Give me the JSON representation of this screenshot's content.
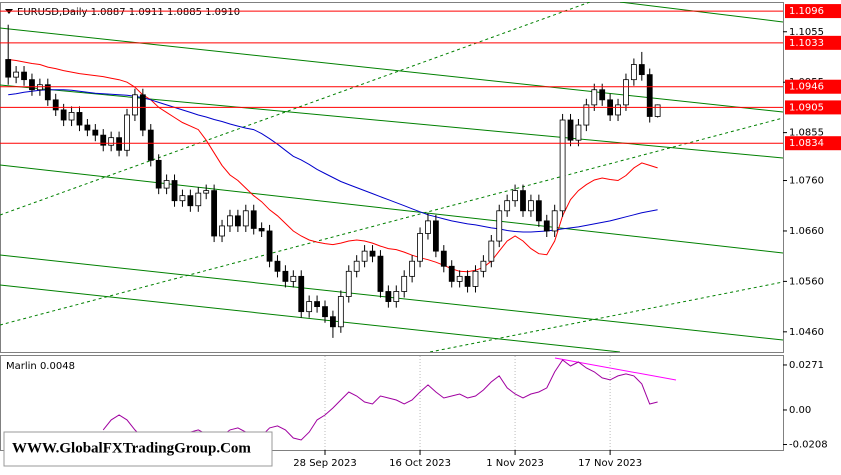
{
  "chart_data": [
    {
      "type": "candlestick",
      "title": "EURUSD,Daily  1.0887 1.0911 1.0885 1.0910",
      "categories": [
        null,
        null,
        null,
        null,
        null,
        null,
        null,
        null,
        null,
        null,
        null,
        null,
        null,
        null,
        null,
        null,
        null,
        null,
        null,
        null,
        null,
        null,
        null,
        null,
        null,
        null,
        null,
        null,
        null,
        null,
        null,
        null,
        null,
        null,
        null,
        null,
        null,
        null,
        null,
        null,
        "28 Sep 2023",
        null,
        null,
        null,
        null,
        null,
        null,
        null,
        null,
        null,
        null,
        null,
        "16 Oct 2023",
        null,
        null,
        null,
        null,
        null,
        null,
        null,
        null,
        null,
        null,
        null,
        "1 Nov 2023",
        null,
        null,
        null,
        null,
        null,
        null,
        null,
        null,
        null,
        null,
        null,
        "17 Nov 2023",
        null,
        null,
        null,
        null,
        null,
        null
      ],
      "open": [
        1.1,
        1.0965,
        1.0975,
        1.096,
        1.094,
        1.095,
        1.092,
        1.09,
        1.088,
        1.0895,
        1.087,
        1.086,
        1.085,
        1.083,
        1.0845,
        1.082,
        1.089,
        1.093,
        1.086,
        1.08,
        1.0745,
        1.076,
        1.072,
        1.073,
        1.071,
        1.0735,
        1.074,
        1.065,
        1.067,
        1.069,
        1.067,
        1.07,
        1.0665,
        1.066,
        1.06,
        1.058,
        1.056,
        1.057,
        1.05,
        1.052,
        1.051,
        1.049,
        1.047,
        1.053,
        1.058,
        1.06,
        1.062,
        1.061,
        1.054,
        1.052,
        1.054,
        1.057,
        1.06,
        1.0655,
        1.068,
        1.062,
        1.059,
        1.056,
        1.057,
        1.055,
        1.058,
        1.06,
        1.064,
        1.07,
        1.072,
        1.074,
        1.07,
        1.072,
        1.068,
        1.066,
        1.07,
        1.088,
        1.084,
        1.087,
        1.091,
        1.094,
        1.092,
        1.089,
        1.091,
        1.096,
        1.099,
        1.097,
        1.0887
      ],
      "high": [
        1.1069,
        1.0987,
        1.0987,
        1.0972,
        1.0962,
        1.0962,
        1.0932,
        1.0912,
        1.0907,
        1.0907,
        1.0882,
        1.0872,
        1.0862,
        1.0857,
        1.0857,
        1.0902,
        1.0942,
        1.0942,
        1.0872,
        1.0812,
        1.0772,
        1.0772,
        1.0742,
        1.0742,
        1.0747,
        1.0752,
        1.0752,
        1.0682,
        1.0702,
        1.0702,
        1.0712,
        1.0712,
        1.0677,
        1.0672,
        1.0612,
        1.0592,
        1.0582,
        1.0582,
        1.0532,
        1.0532,
        1.0522,
        1.0502,
        1.0542,
        1.0592,
        1.0612,
        1.0632,
        1.0632,
        1.0622,
        1.0552,
        1.0552,
        1.0582,
        1.0612,
        1.0667,
        1.0695,
        1.0692,
        1.0632,
        1.0602,
        1.0582,
        1.0582,
        1.0592,
        1.0612,
        1.0652,
        1.0712,
        1.0732,
        1.0752,
        1.0752,
        1.0732,
        1.0732,
        1.0692,
        1.0712,
        1.0892,
        1.0892,
        1.0882,
        1.0922,
        1.0952,
        1.0952,
        1.0932,
        1.0922,
        1.0972,
        1.1002,
        1.1015,
        1.0982,
        1.0911
      ],
      "low": [
        1.095,
        1.0953,
        1.0948,
        1.0928,
        1.0928,
        1.0908,
        1.0888,
        1.0868,
        1.0868,
        1.0858,
        1.0848,
        1.0838,
        1.0818,
        1.0818,
        1.0808,
        1.0808,
        1.0878,
        1.0848,
        1.0788,
        1.0733,
        1.0733,
        1.0708,
        1.0708,
        1.0698,
        1.0698,
        1.0723,
        1.0638,
        1.0638,
        1.0658,
        1.0658,
        1.0658,
        1.0653,
        1.0648,
        1.0588,
        1.0568,
        1.0548,
        1.0548,
        1.0488,
        1.0488,
        1.0498,
        1.0478,
        1.0448,
        1.0458,
        1.0518,
        1.0568,
        1.0588,
        1.0598,
        1.0528,
        1.0508,
        1.0508,
        1.0528,
        1.0558,
        1.0588,
        1.0643,
        1.0608,
        1.0578,
        1.0548,
        1.0548,
        1.0538,
        1.0538,
        1.0568,
        1.0588,
        1.0628,
        1.0688,
        1.0708,
        1.0688,
        1.0688,
        1.0668,
        1.0648,
        1.0648,
        1.0688,
        1.0828,
        1.0828,
        1.0858,
        1.0898,
        1.0908,
        1.0878,
        1.0878,
        1.0898,
        1.0948,
        1.0958,
        1.0875,
        1.0885
      ],
      "close": [
        1.0965,
        1.0975,
        1.096,
        1.094,
        1.095,
        1.092,
        1.09,
        1.088,
        1.0895,
        1.087,
        1.086,
        1.085,
        1.083,
        1.0845,
        1.082,
        1.089,
        1.093,
        1.086,
        1.08,
        1.0745,
        1.076,
        1.072,
        1.073,
        1.071,
        1.0735,
        1.074,
        1.065,
        1.067,
        1.069,
        1.067,
        1.07,
        1.0665,
        1.066,
        1.06,
        1.058,
        1.056,
        1.057,
        1.05,
        1.052,
        1.051,
        1.049,
        1.047,
        1.053,
        1.058,
        1.06,
        1.062,
        1.061,
        1.054,
        1.052,
        1.054,
        1.057,
        1.06,
        1.0655,
        1.068,
        1.062,
        1.059,
        1.056,
        1.057,
        1.055,
        1.058,
        1.06,
        1.064,
        1.07,
        1.072,
        1.074,
        1.07,
        1.072,
        1.068,
        1.066,
        1.07,
        1.088,
        1.084,
        1.087,
        1.091,
        1.094,
        1.092,
        1.089,
        1.091,
        1.096,
        1.099,
        1.097,
        1.0887,
        1.091
      ],
      "overlays": [
        {
          "color": "#ff0000",
          "values": [
            1.1,
            1.0998,
            1.0995,
            1.0992,
            1.099,
            1.0985,
            1.0982,
            1.0978,
            1.0975,
            1.0972,
            1.097,
            1.0968,
            1.0966,
            1.0963,
            1.096,
            1.0955,
            1.0945,
            1.093,
            1.092,
            1.0905,
            1.0895,
            1.0885,
            1.0875,
            1.0868,
            1.0861,
            1.084,
            1.0815,
            1.079,
            1.0771,
            1.076,
            1.0745,
            1.073,
            1.0718,
            1.0702,
            1.069,
            1.0675,
            1.066,
            1.065,
            1.0642,
            1.0638,
            1.0635,
            1.0633,
            1.0636,
            1.064,
            1.0642,
            1.064,
            1.0636,
            1.063,
            1.0625,
            1.0623,
            1.0618,
            1.0612,
            1.0607,
            1.0603,
            1.0598,
            1.0592,
            1.0585,
            1.058,
            1.0579,
            1.0582,
            1.0588,
            1.06,
            1.062,
            1.064,
            1.065,
            1.064,
            1.0625,
            1.0615,
            1.0613,
            1.064,
            1.069,
            1.0722,
            1.074,
            1.0752,
            1.0761,
            1.0765,
            1.0762,
            1.076,
            1.077,
            1.0785,
            1.0795,
            1.079,
            1.0785
          ]
        },
        {
          "color": "#0000cc",
          "values": [
            1.093,
            1.0932,
            1.0935,
            1.0937,
            1.0939,
            1.094,
            1.094,
            1.094,
            1.0939,
            1.0937,
            1.0935,
            1.0933,
            1.0932,
            1.0931,
            1.093,
            1.0929,
            1.0927,
            1.0924,
            1.092,
            1.0915,
            1.091,
            1.0905,
            1.09,
            1.0895,
            1.089,
            1.0886,
            1.0881,
            1.0877,
            1.0872,
            1.0868,
            1.0864,
            1.0861,
            1.0853,
            1.0843,
            1.0832,
            1.082,
            1.0808,
            1.0801,
            1.0792,
            1.0782,
            1.0774,
            1.0766,
            1.0758,
            1.0752,
            1.0746,
            1.074,
            1.0734,
            1.0728,
            1.0722,
            1.0716,
            1.071,
            1.0704,
            1.0698,
            1.0692,
            1.0688,
            1.0684,
            1.068,
            1.0677,
            1.0674,
            1.0672,
            1.0669,
            1.0666,
            1.0664,
            1.0661,
            1.0659,
            1.0658,
            1.0658,
            1.0659,
            1.066,
            1.0662,
            1.0664,
            1.0666,
            1.0668,
            1.0671,
            1.0674,
            1.0677,
            1.068,
            1.0684,
            1.0688,
            1.0692,
            1.0696,
            1.0699,
            1.0702
          ]
        }
      ],
      "levels": [
        1.1096,
        1.1033,
        1.0946,
        1.0905,
        1.0834
      ],
      "levels_color": "#ff0000",
      "ylim": [
        1.042,
        1.1114
      ],
      "yticks": [
        1.1055,
        1.0955,
        1.0855,
        {
          "value": 1.076,
          "label": "1.0760"
        },
        {
          "value": 1.066,
          "label": "1.0660"
        },
        {
          "value": 1.056,
          "label": "1.0560"
        },
        {
          "value": 1.046,
          "label": "1.0460"
        }
      ]
    },
    {
      "type": "line",
      "title": "Marlin 0.0048",
      "color": "#a000a0",
      "values": [
        null,
        null,
        null,
        null,
        null,
        null,
        null,
        null,
        null,
        null,
        null,
        null,
        -0.012,
        -0.006,
        -0.003,
        -0.006,
        -0.012,
        -0.0169,
        -0.0181,
        -0.0181,
        -0.0169,
        -0.0169,
        -0.0157,
        -0.0133,
        -0.012,
        -0.0145,
        -0.0181,
        -0.0157,
        -0.012,
        -0.0108,
        -0.0133,
        -0.0169,
        -0.0157,
        -0.0108,
        -0.0096,
        -0.012,
        -0.0169,
        -0.0181,
        -0.0133,
        -0.006,
        -0.003,
        0.0012,
        0.006,
        0.0108,
        0.0084,
        0.0048,
        0.0036,
        0.0084,
        0.0072,
        0.006,
        0.0036,
        0.006,
        0.0108,
        0.0151,
        0.0108,
        0.0072,
        0.0084,
        0.0096,
        0.0072,
        0.0084,
        0.012,
        0.0169,
        0.0205,
        0.0133,
        0.0096,
        0.0072,
        0.0096,
        0.0108,
        0.0133,
        0.0229,
        0.0301,
        0.0265,
        0.0289,
        0.0253,
        0.0229,
        0.0193,
        0.0181,
        0.0205,
        0.0217,
        0.0205,
        0.0157,
        0.0036,
        0.0048
      ],
      "ylim": [
        -0.0241,
        0.0331
      ],
      "yticks": [
        0.0271,
        {
          "value": 0,
          "label": "0.00"
        },
        -0.0208
      ]
    }
  ],
  "watermark": "WWW.GlobalFXTradingGroup.Com"
}
